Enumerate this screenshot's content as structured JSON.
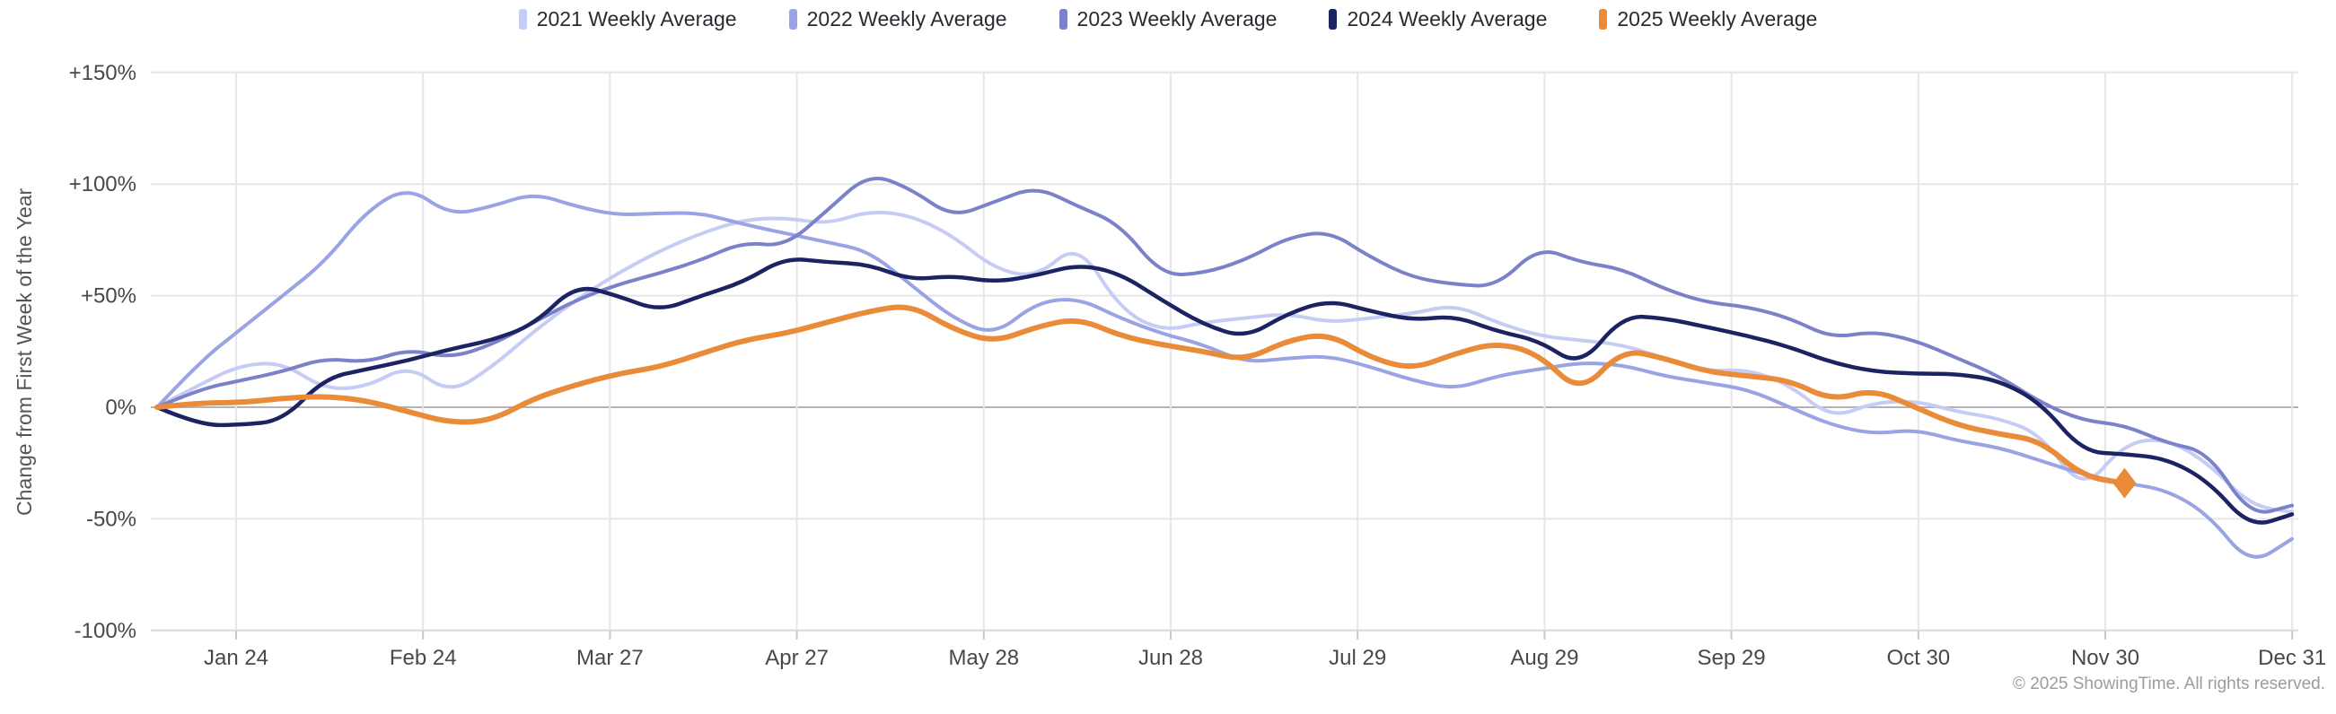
{
  "footer": {
    "copyright": "© 2025 ShowingTime. All rights reserved."
  },
  "chart_data": {
    "type": "line",
    "title": "",
    "xlabel": "",
    "ylabel": "Change from First Week of the Year",
    "x_unit": "week of year (weeks 1-52)",
    "grid": true,
    "legend_position": "top",
    "ylim": [
      -100,
      150
    ],
    "y_tick_values": [
      150,
      100,
      50,
      0,
      -50,
      -100
    ],
    "y_tick_labels": [
      "+150%",
      "+100%",
      "+50%",
      "0%",
      "-50%",
      "-100%"
    ],
    "x_tick_labels": [
      "Jan 24",
      "Feb 24",
      "Mar 27",
      "Apr 27",
      "May 28",
      "Jun 28",
      "Jul 29",
      "Aug 29",
      "Sep 29",
      "Oct 30",
      "Nov 30",
      "Dec 31"
    ],
    "zero_line": true,
    "series": [
      {
        "name": "2021 Weekly Average",
        "color": "#c7ccf4",
        "width": 4,
        "values": [
          0,
          10,
          19,
          20,
          8,
          9,
          19,
          6,
          18,
          34,
          48,
          60,
          70,
          78,
          84,
          85,
          82,
          88,
          86,
          77,
          62,
          58,
          74,
          44,
          34,
          38,
          40,
          42,
          38,
          40,
          42,
          46,
          38,
          32,
          30,
          28,
          22,
          16,
          17,
          10,
          -5,
          2,
          3,
          -2,
          -5,
          -12,
          -38,
          -16,
          -14,
          -25,
          -44,
          -47
        ]
      },
      {
        "name": "2022 Weekly Average",
        "color": "#9aa3e4",
        "width": 4,
        "values": [
          0,
          20,
          35,
          50,
          65,
          88,
          99,
          86,
          90,
          96,
          90,
          86,
          87,
          87,
          82,
          78,
          74,
          70,
          55,
          40,
          32,
          47,
          49,
          40,
          33,
          28,
          20,
          22,
          23,
          18,
          12,
          8,
          14,
          17,
          20,
          19,
          14,
          11,
          8,
          0,
          -8,
          -12,
          -10,
          -15,
          -18,
          -24,
          -30,
          -34,
          -37,
          -48,
          -71,
          -59
        ]
      },
      {
        "name": "2023 Weekly Average",
        "color": "#7c82ca",
        "width": 4,
        "values": [
          0,
          8,
          12,
          16,
          22,
          20,
          26,
          22,
          28,
          38,
          48,
          55,
          60,
          66,
          74,
          72,
          88,
          105,
          98,
          85,
          92,
          99,
          90,
          82,
          59,
          60,
          66,
          76,
          79,
          67,
          58,
          55,
          54,
          72,
          65,
          62,
          53,
          47,
          45,
          40,
          31,
          34,
          30,
          22,
          14,
          2,
          -6,
          -8,
          -16,
          -20,
          -49,
          -44
        ]
      },
      {
        "name": "2024 Weekly Average",
        "color": "#1c2363",
        "width": 4.5,
        "values": [
          0,
          -8,
          -8,
          -6,
          13,
          17,
          21,
          26,
          30,
          37,
          55,
          50,
          43,
          50,
          56,
          67,
          65,
          64,
          57,
          59,
          56,
          59,
          64,
          60,
          48,
          37,
          31,
          42,
          48,
          43,
          39,
          41,
          34,
          30,
          18,
          41,
          40,
          36,
          32,
          27,
          20,
          16,
          15,
          15,
          12,
          2,
          -20,
          -21,
          -23,
          -33,
          -54,
          -48
        ]
      },
      {
        "name": "2025 Weekly Average",
        "color": "#ea8b39",
        "width": 6,
        "end_marker": "diamond",
        "values": [
          0,
          2,
          2,
          4,
          5,
          3,
          -2,
          -7,
          -6,
          4,
          10,
          15,
          18,
          24,
          30,
          33,
          38,
          43,
          46,
          35,
          29,
          36,
          40,
          32,
          28,
          25,
          21,
          30,
          33,
          22,
          17,
          24,
          29,
          24,
          6,
          26,
          22,
          16,
          14,
          12,
          3,
          8,
          0,
          -8,
          -12,
          -15,
          -31,
          -34
        ]
      }
    ]
  }
}
